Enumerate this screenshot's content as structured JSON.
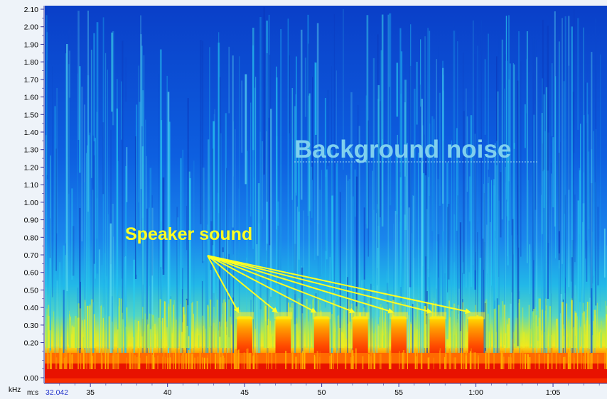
{
  "chart_data": {
    "type": "heatmap",
    "subtype": "spectrogram",
    "y_unit": "kHz",
    "x_unit": "m:s",
    "x_start_readout": "32.042",
    "ylim": [
      0.0,
      2.1
    ],
    "xlim_seconds": [
      32.042,
      68.5
    ],
    "y_ticks": [
      {
        "v": 0.0,
        "label": "0.00"
      },
      {
        "v": 0.2,
        "label": "0.20"
      },
      {
        "v": 0.3,
        "label": "0.30"
      },
      {
        "v": 0.4,
        "label": "0.40"
      },
      {
        "v": 0.5,
        "label": "0.50"
      },
      {
        "v": 0.6,
        "label": "0.60"
      },
      {
        "v": 0.7,
        "label": "0.70"
      },
      {
        "v": 0.8,
        "label": "0.80"
      },
      {
        "v": 0.9,
        "label": "0.90"
      },
      {
        "v": 1.0,
        "label": "1.00"
      },
      {
        "v": 1.1,
        "label": "1.10"
      },
      {
        "v": 1.2,
        "label": "1.20"
      },
      {
        "v": 1.3,
        "label": "1.30"
      },
      {
        "v": 1.4,
        "label": "1.40"
      },
      {
        "v": 1.5,
        "label": "1.50"
      },
      {
        "v": 1.6,
        "label": "1.60"
      },
      {
        "v": 1.7,
        "label": "1.70"
      },
      {
        "v": 1.8,
        "label": "1.80"
      },
      {
        "v": 1.9,
        "label": "1.90"
      },
      {
        "v": 2.0,
        "label": "2.00"
      },
      {
        "v": 2.1,
        "label": "2.10"
      }
    ],
    "x_ticks": [
      {
        "v": 35,
        "label": "35"
      },
      {
        "v": 40,
        "label": "40"
      },
      {
        "v": 45,
        "label": "45"
      },
      {
        "v": 50,
        "label": "50"
      },
      {
        "v": 55,
        "label": "55"
      },
      {
        "v": 60,
        "label": "1:00"
      },
      {
        "v": 65,
        "label": "1:05"
      }
    ],
    "speaker_bursts": [
      {
        "start": 44.5,
        "end": 45.5,
        "top_khz": 0.35
      },
      {
        "start": 47.0,
        "end": 48.0,
        "top_khz": 0.35
      },
      {
        "start": 49.5,
        "end": 50.5,
        "top_khz": 0.35
      },
      {
        "start": 52.0,
        "end": 53.0,
        "top_khz": 0.35
      },
      {
        "start": 54.5,
        "end": 55.5,
        "top_khz": 0.35
      },
      {
        "start": 57.0,
        "end": 58.0,
        "top_khz": 0.35
      },
      {
        "start": 59.5,
        "end": 60.5,
        "top_khz": 0.35
      }
    ],
    "annotations": [
      {
        "text": "Background noise",
        "x_sec": 50.9,
        "y_khz": 1.33
      },
      {
        "text": "Speaker sound",
        "x_sec": 42.8,
        "y_khz": 0.78
      }
    ],
    "colors": {
      "noise_blue": "#0a4fd8",
      "noise_cyan": "#22c4ea",
      "mid_yellow": "#f2ee1e",
      "floor_orange": "#ff7a00",
      "floor_red": "#e81200",
      "arrow_yellow": "#ffff22",
      "grid_dots": "#d8e4f0"
    }
  }
}
